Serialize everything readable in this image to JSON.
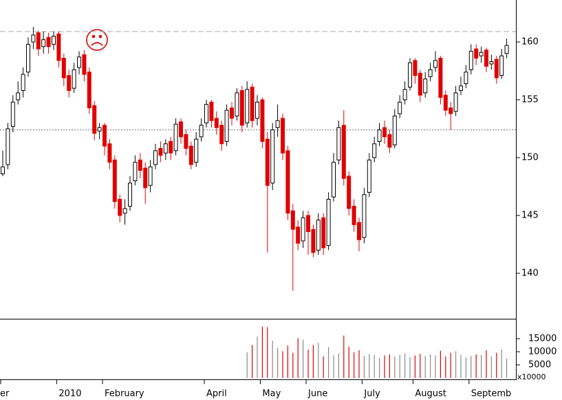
{
  "chart_data": {
    "type": "candlestick",
    "categories": [
      "er",
      null,
      null,
      null,
      null,
      null,
      null,
      null,
      null,
      null,
      null,
      "2010",
      null,
      null,
      null,
      null,
      null,
      null,
      null,
      null,
      "February",
      null,
      null,
      null,
      null,
      null,
      null,
      null,
      null,
      null,
      null,
      null,
      null,
      null,
      null,
      null,
      null,
      null,
      null,
      null,
      "April",
      null,
      null,
      null,
      null,
      null,
      null,
      null,
      null,
      null,
      null,
      "May",
      null,
      null,
      null,
      null,
      null,
      null,
      null,
      null,
      "June",
      null,
      null,
      null,
      null,
      null,
      null,
      null,
      null,
      null,
      null,
      "July",
      null,
      null,
      null,
      null,
      null,
      null,
      null,
      null,
      null,
      "August",
      null,
      null,
      null,
      null,
      null,
      null,
      null,
      null,
      null,
      null,
      "Septemb",
      null,
      null,
      null,
      null,
      null,
      null,
      null
    ],
    "open": [
      148.6,
      149.4,
      152.7,
      155.0,
      155.8,
      157.4,
      160.0,
      160.8,
      159.6,
      160.4,
      159.8,
      160.7,
      158.6,
      157.1,
      156.0,
      157.8,
      158.9,
      157.4,
      154.5,
      152.3,
      152.8,
      151.2,
      149.8,
      146.4,
      145.2,
      145.8,
      148.0,
      149.8,
      149.1,
      147.6,
      149.4,
      150.8,
      150.4,
      151.4,
      150.6,
      153.1,
      152.0,
      151.0,
      149.6,
      151.8,
      153.0,
      154.8,
      153.4,
      152.8,
      151.4,
      154.3,
      153.6,
      155.8,
      153.0,
      156.1,
      153.4,
      155.0,
      151.6,
      147.8,
      152.6,
      153.4,
      150.6,
      145.4,
      144.0,
      142.8,
      145.0,
      143.8,
      142.0,
      144.8,
      142.4,
      146.6,
      149.8,
      152.8,
      148.4,
      145.8,
      144.4,
      143.1,
      147.0,
      150.0,
      151.4,
      152.6,
      152.0,
      151.1,
      153.8,
      155.0,
      156.1,
      158.4,
      157.3,
      155.6,
      157.0,
      157.8,
      158.6,
      155.4,
      154.3,
      154.0,
      155.8,
      156.4,
      157.6,
      159.4,
      158.8,
      159.3,
      158.1,
      158.5,
      157.1,
      159.0
    ],
    "high": [
      150.6,
      153.0,
      155.4,
      156.6,
      157.8,
      160.4,
      161.3,
      161.0,
      160.9,
      160.8,
      160.9,
      160.9,
      159.0,
      157.6,
      158.2,
      159.2,
      159.3,
      157.8,
      154.9,
      153.0,
      153.0,
      151.6,
      150.2,
      146.8,
      146.4,
      148.4,
      150.2,
      150.4,
      149.6,
      149.8,
      151.2,
      151.4,
      151.6,
      151.8,
      153.4,
      153.4,
      152.4,
      151.4,
      152.2,
      153.4,
      155.0,
      155.0,
      154.0,
      153.2,
      154.6,
      154.8,
      156.0,
      156.2,
      156.6,
      156.4,
      155.4,
      155.2,
      152.2,
      153.0,
      154.6,
      153.8,
      151.0,
      146.0,
      144.6,
      145.4,
      145.4,
      144.2,
      145.2,
      145.2,
      147.0,
      150.4,
      153.2,
      154.1,
      148.8,
      146.4,
      144.8,
      147.4,
      150.4,
      151.8,
      153.0,
      153.2,
      152.4,
      154.2,
      155.4,
      156.6,
      158.6,
      158.6,
      157.6,
      157.4,
      158.2,
      159.2,
      158.8,
      155.8,
      154.8,
      156.2,
      157.0,
      158.0,
      159.8,
      159.8,
      159.6,
      159.5,
      158.9,
      158.8,
      159.4,
      160.3
    ],
    "low": [
      148.4,
      149.0,
      152.2,
      154.6,
      155.2,
      157.0,
      159.4,
      158.8,
      159.0,
      159.0,
      159.3,
      157.8,
      156.2,
      155.2,
      155.6,
      157.2,
      156.6,
      153.8,
      151.5,
      151.6,
      150.2,
      149.0,
      145.6,
      144.4,
      144.2,
      145.4,
      147.6,
      148.2,
      146.0,
      147.0,
      149.0,
      149.6,
      149.8,
      149.8,
      150.2,
      151.2,
      150.2,
      149.0,
      149.2,
      151.4,
      152.6,
      152.6,
      152.0,
      150.6,
      151.0,
      152.8,
      153.2,
      152.2,
      152.6,
      152.6,
      152.8,
      150.8,
      141.8,
      147.2,
      151.8,
      149.8,
      144.6,
      138.5,
      142.0,
      142.2,
      141.6,
      141.4,
      141.6,
      141.6,
      142.0,
      146.2,
      149.4,
      147.6,
      145.0,
      143.6,
      141.9,
      142.6,
      146.6,
      149.6,
      151.0,
      151.2,
      150.4,
      150.8,
      153.4,
      154.6,
      155.8,
      156.4,
      154.8,
      155.2,
      156.6,
      157.4,
      154.6,
      153.6,
      152.4,
      153.6,
      155.4,
      156.0,
      157.2,
      158.0,
      158.2,
      157.4,
      157.6,
      156.4,
      156.8,
      158.6
    ],
    "close": [
      149.2,
      152.5,
      154.8,
      155.6,
      157.2,
      159.8,
      160.6,
      159.4,
      160.2,
      159.6,
      160.5,
      158.4,
      156.9,
      155.8,
      157.6,
      158.7,
      157.2,
      154.3,
      152.1,
      152.6,
      151.0,
      149.6,
      146.2,
      145.0,
      145.6,
      147.8,
      149.6,
      148.9,
      147.4,
      149.2,
      150.6,
      150.2,
      151.2,
      150.4,
      152.9,
      151.8,
      150.8,
      149.4,
      151.6,
      152.8,
      154.6,
      153.2,
      152.6,
      151.2,
      154.1,
      153.4,
      155.6,
      152.8,
      155.9,
      153.2,
      154.8,
      151.4,
      147.6,
      152.4,
      153.2,
      150.4,
      145.2,
      143.8,
      142.6,
      144.8,
      143.6,
      141.8,
      144.6,
      142.2,
      146.4,
      149.6,
      152.6,
      148.2,
      145.6,
      144.2,
      142.9,
      146.8,
      149.8,
      151.2,
      152.4,
      151.8,
      150.9,
      153.6,
      154.8,
      155.9,
      158.2,
      157.1,
      155.4,
      156.8,
      157.6,
      158.4,
      155.2,
      154.1,
      153.8,
      155.6,
      156.2,
      157.4,
      159.2,
      158.6,
      159.1,
      157.9,
      158.3,
      156.9,
      158.8,
      159.7
    ],
    "ylim": [
      136.07,
      163.63
    ],
    "yticks": [
      140,
      145,
      150,
      155,
      160
    ],
    "hlines": [
      160.9,
      152.4
    ],
    "up_color": "#000000",
    "down_color": "#e00000",
    "volume_up_color": "#888888",
    "volume": {
      "values": [
        null,
        null,
        null,
        null,
        null,
        null,
        null,
        null,
        null,
        null,
        null,
        null,
        null,
        null,
        null,
        null,
        null,
        null,
        null,
        null,
        null,
        null,
        null,
        null,
        null,
        null,
        null,
        null,
        null,
        null,
        null,
        null,
        null,
        null,
        null,
        null,
        null,
        null,
        null,
        null,
        null,
        null,
        null,
        null,
        null,
        null,
        null,
        null,
        9800,
        12600,
        15800,
        19600,
        19400,
        14200,
        11600,
        10200,
        12400,
        9600,
        15200,
        14600,
        10800,
        12600,
        13400,
        8200,
        11800,
        8600,
        9400,
        16200,
        12000,
        9800,
        10600,
        8400,
        9200,
        8800,
        7600,
        8600,
        9000,
        8200,
        8800,
        9400,
        8000,
        8600,
        9200,
        8400,
        9000,
        8600,
        10400,
        8200,
        9600,
        10200,
        8800,
        7800,
        8400,
        9000,
        8800,
        10600,
        8200,
        9600,
        10800,
        7400
      ],
      "ylim": [
        0,
        22600
      ],
      "yticks": [
        5000,
        10000,
        15000
      ],
      "unit_label": "x10000"
    }
  }
}
